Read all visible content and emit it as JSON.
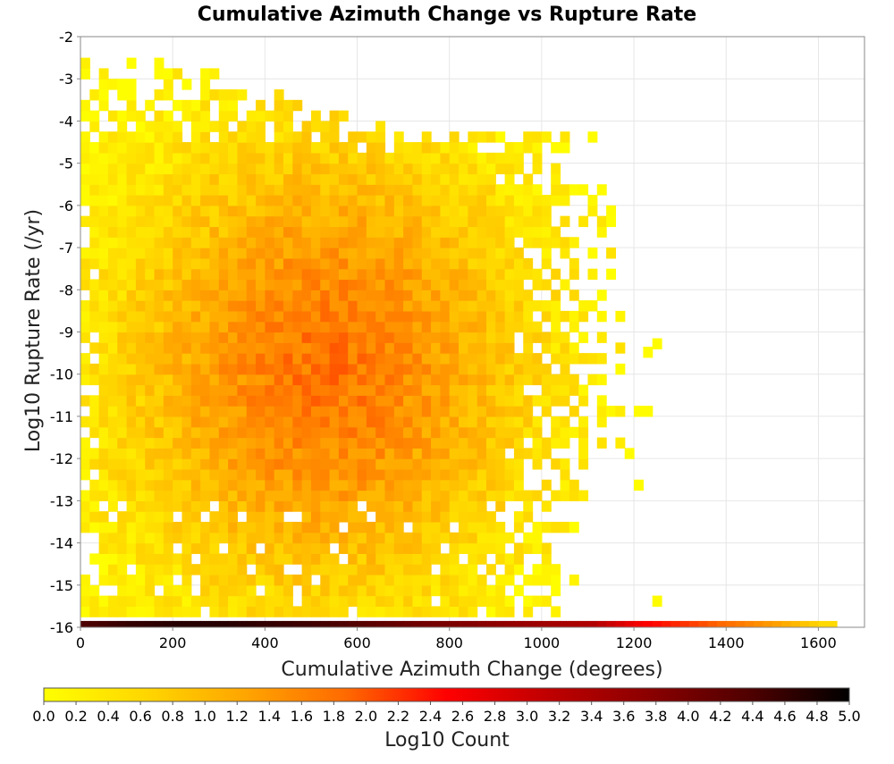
{
  "chart_data": {
    "type": "heatmap",
    "title": "Cumulative Azimuth Change vs Rupture Rate",
    "xlabel": "Cumulative Azimuth Change (degrees)",
    "ylabel": "Log10 Rupture Rate (/yr)",
    "xlim": [
      0,
      1700
    ],
    "ylim": [
      -16,
      -2
    ],
    "xticks": [
      "0",
      "200",
      "400",
      "600",
      "800",
      "1000",
      "1200",
      "1400",
      "1600"
    ],
    "xtick_values": [
      0,
      200,
      400,
      600,
      800,
      1000,
      1200,
      1400,
      1600
    ],
    "yticks": [
      "-2",
      "-3",
      "-4",
      "-5",
      "-6",
      "-7",
      "-8",
      "-9",
      "-10",
      "-11",
      "-12",
      "-13",
      "-14",
      "-15",
      "-16"
    ],
    "ytick_values": [
      -2,
      -3,
      -4,
      -5,
      -6,
      -7,
      -8,
      -9,
      -10,
      -11,
      -12,
      -13,
      -14,
      -15,
      -16
    ],
    "grid": true,
    "bin_width_x": 20,
    "bin_height_y": 0.25,
    "value_description": "Log10 Count",
    "colorbar": {
      "label": "Log10 Count",
      "range": [
        0,
        5
      ],
      "ticks": [
        "0.0",
        "0.2",
        "0.4",
        "0.6",
        "0.8",
        "1.0",
        "1.2",
        "1.4",
        "1.6",
        "1.8",
        "2.0",
        "2.2",
        "2.4",
        "2.6",
        "2.8",
        "3.0",
        "3.2",
        "3.4",
        "3.6",
        "3.8",
        "4.0",
        "4.2",
        "4.4",
        "4.6",
        "4.8",
        "5.0"
      ],
      "colors": [
        "#ffff00",
        "#ffd700",
        "#ffa500",
        "#ff6a00",
        "#ff0000",
        "#c00000",
        "#8b0000",
        "#500000",
        "#000000"
      ]
    },
    "bottom_row": {
      "y": -16,
      "values": [
        [
          0,
          4.4
        ],
        [
          100,
          4.6
        ],
        [
          200,
          4.7
        ],
        [
          300,
          4.7
        ],
        [
          400,
          4.6
        ],
        [
          500,
          4.5
        ],
        [
          600,
          4.3
        ],
        [
          700,
          4.1
        ],
        [
          800,
          3.9
        ],
        [
          900,
          3.7
        ],
        [
          1000,
          3.5
        ],
        [
          1100,
          3.3
        ],
        [
          1200,
          2.6
        ],
        [
          1300,
          2.2
        ],
        [
          1400,
          1.8
        ],
        [
          1500,
          1.3
        ],
        [
          1600,
          0.6
        ]
      ]
    },
    "density_model": {
      "peak_x": 520,
      "peak_y": -10,
      "peak_value": 1.75,
      "extent_x": [
        0,
        1260
      ],
      "extent_y": [
        -15.75,
        -2.75
      ],
      "description": "Main body of counts spanning roughly 0–1250 degrees and -16 to -2.75 log10 rate, densest near 400–650 degrees and -9 to -11"
    }
  }
}
